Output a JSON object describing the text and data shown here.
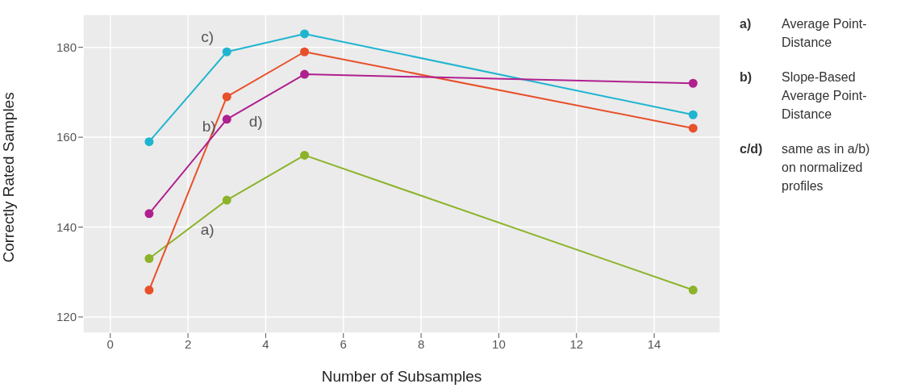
{
  "chart_data": {
    "type": "line",
    "xlabel": "Number of Subsamples",
    "ylabel": "Correctly Rated Samples",
    "x": [
      1,
      3,
      5,
      15
    ],
    "series": [
      {
        "name": "a)",
        "color": "#8cb32a",
        "values": [
          133,
          146,
          156,
          126
        ]
      },
      {
        "name": "b)",
        "color": "#e8502a",
        "values": [
          126,
          169,
          179,
          162
        ]
      },
      {
        "name": "c)",
        "color": "#1fb5d0",
        "values": [
          159,
          179,
          183,
          165
        ]
      },
      {
        "name": "d)",
        "color": "#b0208f",
        "values": [
          143,
          164,
          174,
          172
        ]
      }
    ],
    "xlim": [
      -0.7,
      15.7
    ],
    "xticks": [
      0,
      2,
      4,
      6,
      8,
      10,
      12,
      14
    ],
    "ylim": [
      116.4,
      187.3
    ],
    "yticks": [
      120,
      140,
      160,
      180
    ],
    "grid": true,
    "marker": "circle",
    "line_style": "solid",
    "legend": false,
    "annotations": [
      "a) Average Point-Distance",
      "b) Slope-Based Average Point-Distance",
      "c/d) same as in a/b) on normalized profiles"
    ]
  }
}
